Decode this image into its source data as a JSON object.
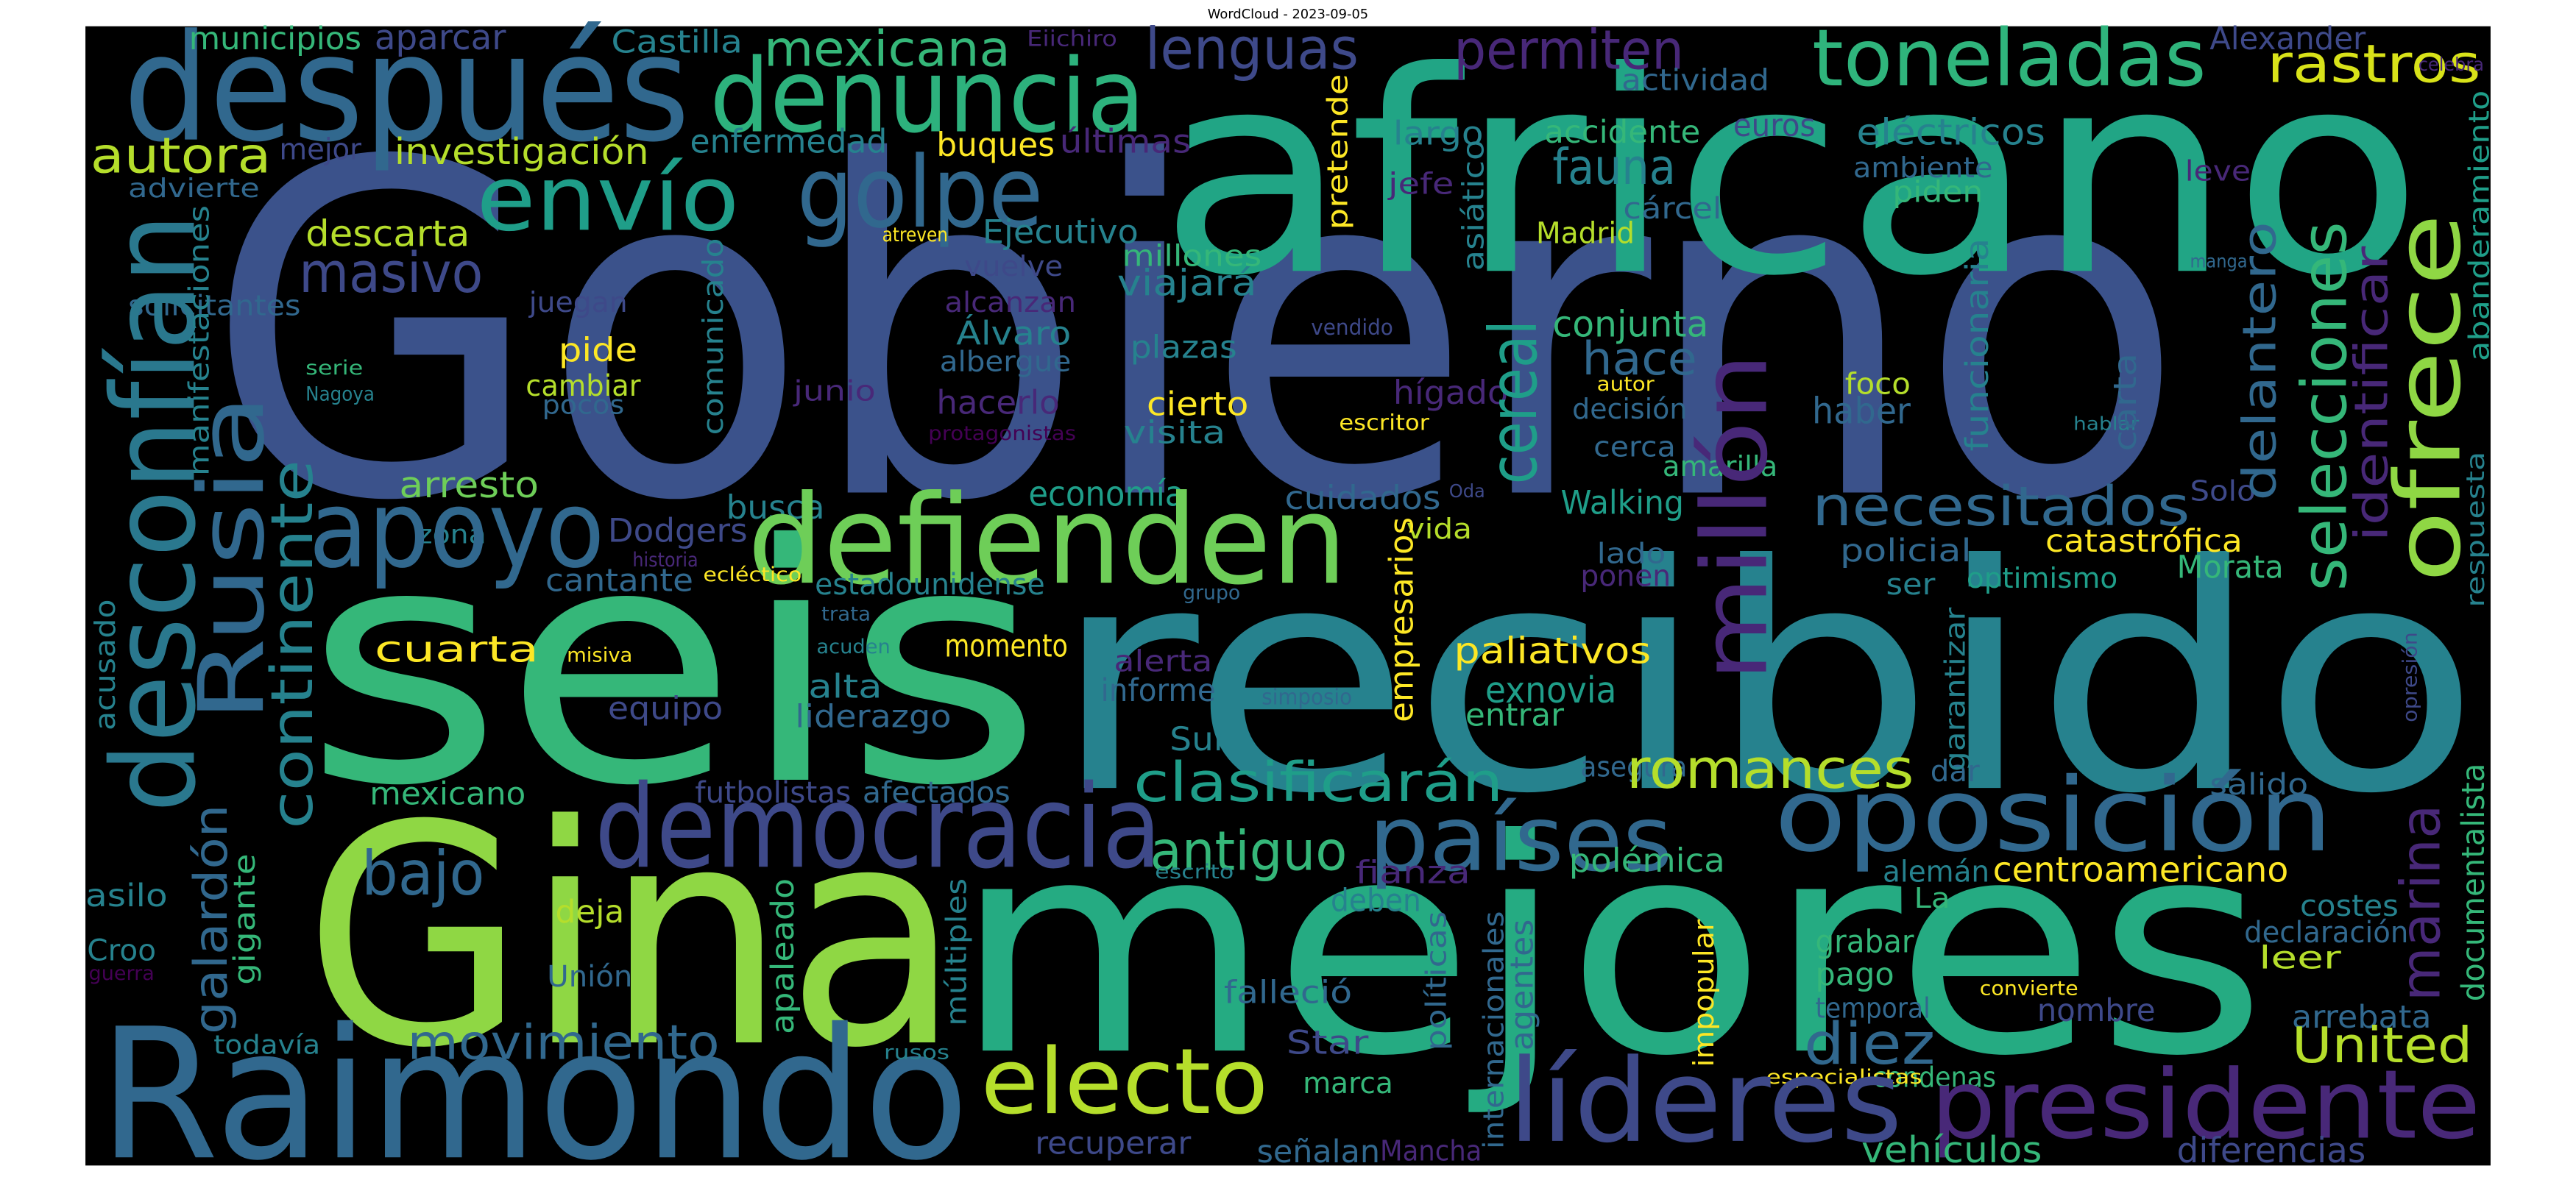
{
  "chart_data": {
    "type": "wordcloud",
    "title": "WordCloud - 2023-09-05",
    "background": "#000000",
    "words": [
      {
        "text": "Gobierno",
        "value": 280,
        "color": "#3b528b"
      },
      {
        "text": "africano",
        "value": 170,
        "color": "#21a585"
      },
      {
        "text": "seis",
        "value": 200,
        "color": "#35b779"
      },
      {
        "text": "recibido",
        "value": 190,
        "color": "#26828e"
      },
      {
        "text": "Gina",
        "value": 185,
        "color": "#8fd744"
      },
      {
        "text": "mejores",
        "value": 180,
        "color": "#25ab82"
      },
      {
        "text": "Raimondo",
        "value": 110,
        "color": "#31688e"
      },
      {
        "text": "después",
        "value": 90,
        "color": "#31688e"
      },
      {
        "text": "denuncia",
        "value": 62,
        "color": "#2db27d"
      },
      {
        "text": "toneladas",
        "value": 48,
        "color": "#2fb47c"
      },
      {
        "text": "rastros",
        "value": 32,
        "color": "#d8e219"
      },
      {
        "text": "lenguas",
        "value": 35,
        "color": "#3e4989"
      },
      {
        "text": "permiten",
        "value": 33,
        "color": "#482878"
      },
      {
        "text": "mexicana",
        "value": 30,
        "color": "#35b779"
      },
      {
        "text": "golpe",
        "value": 60,
        "color": "#31688e"
      },
      {
        "text": "envío",
        "value": 55,
        "color": "#1f9e89"
      },
      {
        "text": "autora",
        "value": 30,
        "color": "#b5de2b"
      },
      {
        "text": "fauna",
        "value": 30,
        "color": "#26828e"
      },
      {
        "text": "investigación",
        "value": 22,
        "color": "#b5de2b"
      },
      {
        "text": "mejor",
        "value": 18,
        "color": "#3e4989"
      },
      {
        "text": "advierte",
        "value": 16,
        "color": "#31688e"
      },
      {
        "text": "enfermedad",
        "value": 20,
        "color": "#26828e"
      },
      {
        "text": "buques",
        "value": 20,
        "color": "#fde725"
      },
      {
        "text": "últimas",
        "value": 20,
        "color": "#482878"
      },
      {
        "text": "largo",
        "value": 20,
        "color": "#26828e"
      },
      {
        "text": "accidente",
        "value": 19,
        "color": "#35b779"
      },
      {
        "text": "euros",
        "value": 19,
        "color": "#3e4989"
      },
      {
        "text": "eléctricos",
        "value": 22,
        "color": "#26828e"
      },
      {
        "text": "actividad",
        "value": 18,
        "color": "#31688e"
      },
      {
        "text": "Alexander",
        "value": 19,
        "color": "#3e4989"
      },
      {
        "text": "municipios",
        "value": 19,
        "color": "#35b779"
      },
      {
        "text": "aparcar",
        "value": 21,
        "color": "#3e4989"
      },
      {
        "text": "Castilla",
        "value": 19,
        "color": "#26828e"
      },
      {
        "text": "Eiichiro",
        "value": 13,
        "color": "#482878"
      },
      {
        "text": "leve",
        "value": 17,
        "color": "#482878"
      },
      {
        "text": "ambiente",
        "value": 17,
        "color": "#31688e"
      },
      {
        "text": "piden",
        "value": 18,
        "color": "#35b779"
      },
      {
        "text": "jefe",
        "value": 18,
        "color": "#482878"
      },
      {
        "text": "cárcel",
        "value": 18,
        "color": "#31688e"
      },
      {
        "text": "descarta",
        "value": 22,
        "color": "#b5de2b"
      },
      {
        "text": "Ejecutivo",
        "value": 20,
        "color": "#26828e"
      },
      {
        "text": "masivo",
        "value": 34,
        "color": "#3e4989"
      },
      {
        "text": "Madrid",
        "value": 18,
        "color": "#b5de2b"
      },
      {
        "text": "millones",
        "value": 18,
        "color": "#35b779"
      },
      {
        "text": "vuelve",
        "value": 17,
        "color": "#3e4989"
      },
      {
        "text": "atreven",
        "value": 12,
        "color": "#fde725"
      },
      {
        "text": "viajará",
        "value": 22,
        "color": "#26828e"
      },
      {
        "text": "solicitantes",
        "value": 17,
        "color": "#31688e"
      },
      {
        "text": "juegan",
        "value": 17,
        "color": "#3e4989"
      },
      {
        "text": "alcanzan",
        "value": 17,
        "color": "#482878"
      },
      {
        "text": "conjunta",
        "value": 22,
        "color": "#35b779"
      },
      {
        "text": "Álvaro",
        "value": 20,
        "color": "#26828e"
      },
      {
        "text": "albergue",
        "value": 17,
        "color": "#31688e"
      },
      {
        "text": "vendido",
        "value": 13,
        "color": "#3e4989"
      },
      {
        "text": "hace",
        "value": 28,
        "color": "#31688e"
      },
      {
        "text": "pide",
        "value": 20,
        "color": "#fde725"
      },
      {
        "text": "cambiar",
        "value": 18,
        "color": "#b5de2b"
      },
      {
        "text": "pocos",
        "value": 16,
        "color": "#31688e"
      },
      {
        "text": "serie",
        "value": 12,
        "color": "#35b779"
      },
      {
        "text": "Nagoya",
        "value": 12,
        "color": "#26828e"
      },
      {
        "text": "plazas",
        "value": 19,
        "color": "#26828e"
      },
      {
        "text": "junio",
        "value": 17,
        "color": "#482878"
      },
      {
        "text": "hacerlo",
        "value": 20,
        "color": "#482878"
      },
      {
        "text": "cierto",
        "value": 20,
        "color": "#fde725"
      },
      {
        "text": "hígado",
        "value": 20,
        "color": "#482878"
      },
      {
        "text": "autor",
        "value": 12,
        "color": "#fde725"
      },
      {
        "text": "decisión",
        "value": 17,
        "color": "#31688e"
      },
      {
        "text": "foco",
        "value": 18,
        "color": "#b5de2b"
      },
      {
        "text": "haber",
        "value": 22,
        "color": "#31688e"
      },
      {
        "text": "escritor",
        "value": 13,
        "color": "#fde725"
      },
      {
        "text": "visita",
        "value": 19,
        "color": "#26828e"
      },
      {
        "text": "protagonistas",
        "value": 12,
        "color": "#440154"
      },
      {
        "text": "cerca",
        "value": 17,
        "color": "#31688e"
      },
      {
        "text": "amarilla",
        "value": 17,
        "color": "#35b779"
      },
      {
        "text": "arresto",
        "value": 22,
        "color": "#6ece58"
      },
      {
        "text": "economía",
        "value": 21,
        "color": "#1f9e89"
      },
      {
        "text": "busca",
        "value": 20,
        "color": "#26828e"
      },
      {
        "text": "Oda",
        "value": 11,
        "color": "#3e4989"
      },
      {
        "text": "vida",
        "value": 17,
        "color": "#b5de2b"
      },
      {
        "text": "cuidados",
        "value": 20,
        "color": "#31688e"
      },
      {
        "text": "Walking",
        "value": 20,
        "color": "#1f9e89"
      },
      {
        "text": "Solo",
        "value": 17,
        "color": "#3e4989"
      },
      {
        "text": "necesitados",
        "value": 33,
        "color": "#31688e"
      },
      {
        "text": "Dodgers",
        "value": 20,
        "color": "#3e4989"
      },
      {
        "text": "zona",
        "value": 16,
        "color": "#26828e"
      },
      {
        "text": "apoyo",
        "value": 65,
        "color": "#31688e"
      },
      {
        "text": "defienden",
        "value": 75,
        "color": "#6ece58"
      },
      {
        "text": "historia",
        "value": 12,
        "color": "#482878"
      },
      {
        "text": "catastrófica",
        "value": 19,
        "color": "#fde725"
      },
      {
        "text": "policial",
        "value": 19,
        "color": "#31688e"
      },
      {
        "text": "lado",
        "value": 17,
        "color": "#31688e"
      },
      {
        "text": "ponen",
        "value": 18,
        "color": "#482878"
      },
      {
        "text": "Morata",
        "value": 19,
        "color": "#35b779"
      },
      {
        "text": "cantante",
        "value": 19,
        "color": "#31688e"
      },
      {
        "text": "ecléctico",
        "value": 12,
        "color": "#fde725"
      },
      {
        "text": "estadounidense",
        "value": 18,
        "color": "#26828e"
      },
      {
        "text": "grupo",
        "value": 12,
        "color": "#31688e"
      },
      {
        "text": "ser",
        "value": 18,
        "color": "#26828e"
      },
      {
        "text": "optimismo",
        "value": 17,
        "color": "#1f9e89"
      },
      {
        "text": "trata",
        "value": 12,
        "color": "#31688e"
      },
      {
        "text": "misiva",
        "value": 12,
        "color": "#fde725"
      },
      {
        "text": "acuden",
        "value": 12,
        "color": "#26828e"
      },
      {
        "text": "cuarta",
        "value": 22,
        "color": "#fde725"
      },
      {
        "text": "momento",
        "value": 19,
        "color": "#fde725"
      },
      {
        "text": "alerta",
        "value": 18,
        "color": "#482878"
      },
      {
        "text": "paliativos",
        "value": 22,
        "color": "#fde725"
      },
      {
        "text": "simposio",
        "value": 13,
        "color": "#31688e"
      },
      {
        "text": "informe",
        "value": 19,
        "color": "#31688e"
      },
      {
        "text": "alta",
        "value": 20,
        "color": "#26828e"
      },
      {
        "text": "exnovia",
        "value": 22,
        "color": "#1f9e89"
      },
      {
        "text": "liderazgo",
        "value": 19,
        "color": "#31688e"
      },
      {
        "text": "equipo",
        "value": 19,
        "color": "#3e4989"
      },
      {
        "text": "entrar",
        "value": 19,
        "color": "#35b779"
      },
      {
        "text": "Sun",
        "value": 20,
        "color": "#26828e"
      },
      {
        "text": "asegura",
        "value": 17,
        "color": "#31688e"
      },
      {
        "text": "romances",
        "value": 33,
        "color": "#b5de2b"
      },
      {
        "text": "dar",
        "value": 18,
        "color": "#31688e"
      },
      {
        "text": "salido",
        "value": 18,
        "color": "#31688e"
      },
      {
        "text": "clasificarán",
        "value": 33,
        "color": "#1f9e89"
      },
      {
        "text": "futbolistas",
        "value": 18,
        "color": "#3e4989"
      },
      {
        "text": "afectados",
        "value": 18,
        "color": "#31688e"
      },
      {
        "text": "mexicano",
        "value": 19,
        "color": "#35b779"
      },
      {
        "text": "democracia",
        "value": 70,
        "color": "#3e4989"
      },
      {
        "text": "antiguo",
        "value": 33,
        "color": "#35b779"
      },
      {
        "text": "países",
        "value": 55,
        "color": "#31688e"
      },
      {
        "text": "oposición",
        "value": 62,
        "color": "#31688e"
      },
      {
        "text": "bajo",
        "value": 37,
        "color": "#31688e"
      },
      {
        "text": "escrito",
        "value": 12,
        "color": "#26828e"
      },
      {
        "text": "fianza",
        "value": 19,
        "color": "#482878"
      },
      {
        "text": "polémica",
        "value": 20,
        "color": "#35b779"
      },
      {
        "text": "alemán",
        "value": 18,
        "color": "#26828e"
      },
      {
        "text": "centroamericano",
        "value": 21,
        "color": "#fde725"
      },
      {
        "text": "asilo",
        "value": 19,
        "color": "#26828e"
      },
      {
        "text": "La",
        "value": 17,
        "color": "#35b779"
      },
      {
        "text": "costes",
        "value": 18,
        "color": "#26828e"
      },
      {
        "text": "deja",
        "value": 19,
        "color": "#b5de2b"
      },
      {
        "text": "deben",
        "value": 19,
        "color": "#26828e"
      },
      {
        "text": "grabar",
        "value": 19,
        "color": "#35b779"
      },
      {
        "text": "declaración",
        "value": 18,
        "color": "#31688e"
      },
      {
        "text": "Croo",
        "value": 18,
        "color": "#26828e"
      },
      {
        "text": "leer",
        "value": 19,
        "color": "#b5de2b"
      },
      {
        "text": "guerra",
        "value": 12,
        "color": "#440154"
      },
      {
        "text": "Unión",
        "value": 18,
        "color": "#31688e"
      },
      {
        "text": "convierte",
        "value": 12,
        "color": "#fde725"
      },
      {
        "text": "pago",
        "value": 19,
        "color": "#35b779"
      },
      {
        "text": "falleció",
        "value": 19,
        "color": "#31688e"
      },
      {
        "text": "temporal",
        "value": 17,
        "color": "#31688e"
      },
      {
        "text": "arrebata",
        "value": 19,
        "color": "#31688e"
      },
      {
        "text": "nombre",
        "value": 19,
        "color": "#3e4989"
      },
      {
        "text": "movimiento",
        "value": 29,
        "color": "#31688e"
      },
      {
        "text": "Star",
        "value": 20,
        "color": "#3e4989"
      },
      {
        "text": "diez",
        "value": 35,
        "color": "#31688e"
      },
      {
        "text": "United",
        "value": 30,
        "color": "#b5de2b"
      },
      {
        "text": "todavía",
        "value": 16,
        "color": "#26828e"
      },
      {
        "text": "rusos",
        "value": 12,
        "color": "#26828e"
      },
      {
        "text": "electo",
        "value": 55,
        "color": "#b5de2b"
      },
      {
        "text": "marca",
        "value": 18,
        "color": "#35b779"
      },
      {
        "text": "condenas",
        "value": 17,
        "color": "#35b779"
      },
      {
        "text": "especialistas",
        "value": 12,
        "color": "#fde725"
      },
      {
        "text": "líderes",
        "value": 70,
        "color": "#3e4989"
      },
      {
        "text": "presidente",
        "value": 58,
        "color": "#482878"
      },
      {
        "text": "recuperar",
        "value": 19,
        "color": "#3e4989"
      },
      {
        "text": "señalan",
        "value": 19,
        "color": "#31688e"
      },
      {
        "text": "Mancha",
        "value": 17,
        "color": "#482878"
      },
      {
        "text": "vehículos",
        "value": 22,
        "color": "#35b779"
      },
      {
        "text": "diferencias",
        "value": 21,
        "color": "#3e4989"
      },
      {
        "text": "celebra",
        "value": 11,
        "color": "#482878"
      },
      {
        "text": "manga",
        "value": 11,
        "color": "#31688e"
      },
      {
        "text": "hablar",
        "value": 11,
        "color": "#26828e"
      },
      {
        "text": "desconfían",
        "value": 70,
        "color": "#2a788e"
      },
      {
        "text": "Rusia",
        "value": 55,
        "color": "#31688e"
      },
      {
        "text": "continente",
        "value": 35,
        "color": "#26828e"
      },
      {
        "text": "galardón",
        "value": 28,
        "color": "#31688e"
      },
      {
        "text": "manifestaciones",
        "value": 17,
        "color": "#26828e"
      },
      {
        "text": "acusado",
        "value": 17,
        "color": "#26828e"
      },
      {
        "text": "gigante",
        "value": 18,
        "color": "#35b779"
      },
      {
        "text": "comunicado",
        "value": 17,
        "color": "#26828e"
      },
      {
        "text": "apaleado",
        "value": 19,
        "color": "#35b779"
      },
      {
        "text": "múltiples",
        "value": 17,
        "color": "#26828e"
      },
      {
        "text": "pretende",
        "value": 17,
        "color": "#fde725"
      },
      {
        "text": "asiático",
        "value": 18,
        "color": "#26828e"
      },
      {
        "text": "cereal",
        "value": 40,
        "color": "#1f9e89"
      },
      {
        "text": "millón",
        "value": 55,
        "color": "#482878"
      },
      {
        "text": "empresarios",
        "value": 20,
        "color": "#fde725"
      },
      {
        "text": "internacionales",
        "value": 17,
        "color": "#31688e"
      },
      {
        "text": "agentes",
        "value": 19,
        "color": "#31688e"
      },
      {
        "text": "políticas",
        "value": 17,
        "color": "#31688e"
      },
      {
        "text": "impopular",
        "value": 17,
        "color": "#fde725"
      },
      {
        "text": "delantero",
        "value": 28,
        "color": "#31688e"
      },
      {
        "text": "selecciones",
        "value": 38,
        "color": "#35b779"
      },
      {
        "text": "identificar",
        "value": 28,
        "color": "#482878"
      },
      {
        "text": "ofrece",
        "value": 55,
        "color": "#8fd744"
      },
      {
        "text": "abanderamiento",
        "value": 17,
        "color": "#1f9e89"
      },
      {
        "text": "respuesta",
        "value": 15,
        "color": "#26828e"
      },
      {
        "text": "opresión",
        "value": 12,
        "color": "#3e4989"
      },
      {
        "text": "marina",
        "value": 33,
        "color": "#482878"
      },
      {
        "text": "documentalista",
        "value": 19,
        "color": "#35b779"
      },
      {
        "text": "garantizar",
        "value": 17,
        "color": "#26828e"
      },
      {
        "text": "funcionaria",
        "value": 19,
        "color": "#26828e"
      },
      {
        "text": "carta",
        "value": 19,
        "color": "#31688e"
      }
    ]
  }
}
